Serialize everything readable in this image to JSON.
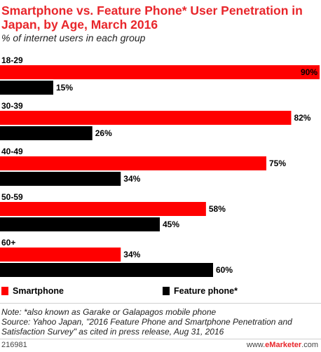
{
  "title": "Smartphone vs. Feature Phone* User Penetration in Japan, by Age, March 2016",
  "subtitle": "% of internet users in each group",
  "chart_data": {
    "type": "bar",
    "orientation": "horizontal",
    "categories": [
      "18-29",
      "30-39",
      "40-49",
      "50-59",
      "60+"
    ],
    "series": [
      {
        "name": "Smartphone",
        "color": "#ff0000",
        "values": [
          90,
          82,
          75,
          58,
          34
        ],
        "labels": [
          "90%",
          "82%",
          "75%",
          "58%",
          "34%"
        ]
      },
      {
        "name": "Feature phone*",
        "color": "#000000",
        "values": [
          15,
          26,
          34,
          45,
          60
        ],
        "labels": [
          "15%",
          "26%",
          "34%",
          "45%",
          "60%"
        ]
      }
    ],
    "xlim": [
      0,
      90
    ],
    "grid": false,
    "legend_position": "bottom"
  },
  "legend": {
    "smartphone": "Smartphone",
    "feature_phone": "Feature phone*"
  },
  "note": "Note: *also known as Garake or Galapagos mobile phone",
  "source": "Source: Yahoo Japan, \"2016 Feature Phone and Smartphone Penetration and Satisfaction Survey\" as cited in press release, Aug 31, 2016",
  "footer": {
    "chart_id": "216981",
    "copyright": "www.",
    "brand": "eMarketer",
    "domain": ".com"
  }
}
